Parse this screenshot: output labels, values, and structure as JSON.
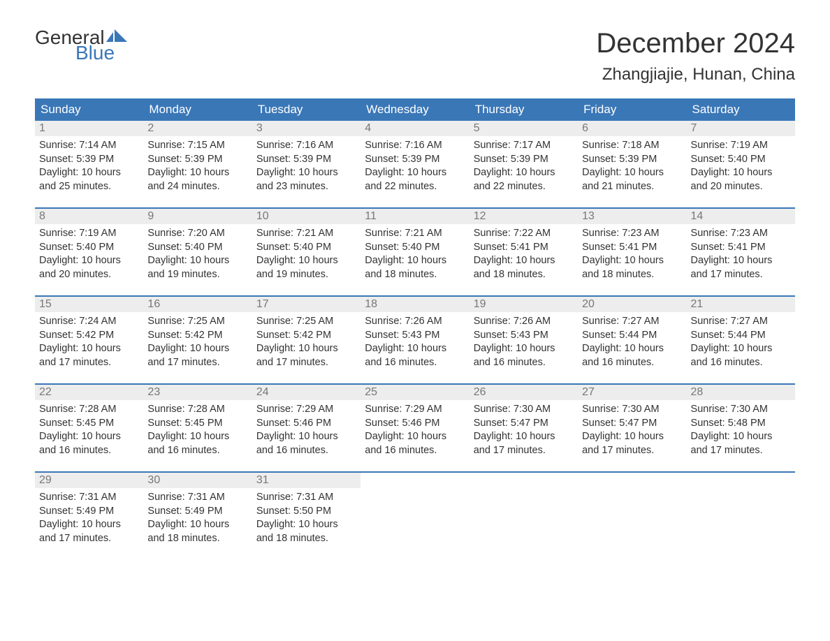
{
  "logo": {
    "word1": "General",
    "word2": "Blue",
    "flag_color": "#3a77b7"
  },
  "title": "December 2024",
  "location": "Zhangjiajie, Hunan, China",
  "colors": {
    "header_bg": "#3a77b7",
    "header_text": "#ffffff",
    "daynum_bg": "#ededed",
    "daynum_text": "#777777",
    "body_text": "#333333",
    "week_divider": "#3a77b7",
    "page_bg": "#ffffff"
  },
  "typography": {
    "title_fontsize": 40,
    "location_fontsize": 24,
    "weekday_fontsize": 17,
    "daynum_fontsize": 16,
    "body_fontsize": 14.5,
    "logo_fontsize": 28
  },
  "weekdays": [
    "Sunday",
    "Monday",
    "Tuesday",
    "Wednesday",
    "Thursday",
    "Friday",
    "Saturday"
  ],
  "labels": {
    "sunrise": "Sunrise:",
    "sunset": "Sunset:",
    "daylight": "Daylight:"
  },
  "days": [
    {
      "n": 1,
      "sunrise": "7:14 AM",
      "sunset": "5:39 PM",
      "daylight": "10 hours and 25 minutes."
    },
    {
      "n": 2,
      "sunrise": "7:15 AM",
      "sunset": "5:39 PM",
      "daylight": "10 hours and 24 minutes."
    },
    {
      "n": 3,
      "sunrise": "7:16 AM",
      "sunset": "5:39 PM",
      "daylight": "10 hours and 23 minutes."
    },
    {
      "n": 4,
      "sunrise": "7:16 AM",
      "sunset": "5:39 PM",
      "daylight": "10 hours and 22 minutes."
    },
    {
      "n": 5,
      "sunrise": "7:17 AM",
      "sunset": "5:39 PM",
      "daylight": "10 hours and 22 minutes."
    },
    {
      "n": 6,
      "sunrise": "7:18 AM",
      "sunset": "5:39 PM",
      "daylight": "10 hours and 21 minutes."
    },
    {
      "n": 7,
      "sunrise": "7:19 AM",
      "sunset": "5:40 PM",
      "daylight": "10 hours and 20 minutes."
    },
    {
      "n": 8,
      "sunrise": "7:19 AM",
      "sunset": "5:40 PM",
      "daylight": "10 hours and 20 minutes."
    },
    {
      "n": 9,
      "sunrise": "7:20 AM",
      "sunset": "5:40 PM",
      "daylight": "10 hours and 19 minutes."
    },
    {
      "n": 10,
      "sunrise": "7:21 AM",
      "sunset": "5:40 PM",
      "daylight": "10 hours and 19 minutes."
    },
    {
      "n": 11,
      "sunrise": "7:21 AM",
      "sunset": "5:40 PM",
      "daylight": "10 hours and 18 minutes."
    },
    {
      "n": 12,
      "sunrise": "7:22 AM",
      "sunset": "5:41 PM",
      "daylight": "10 hours and 18 minutes."
    },
    {
      "n": 13,
      "sunrise": "7:23 AM",
      "sunset": "5:41 PM",
      "daylight": "10 hours and 18 minutes."
    },
    {
      "n": 14,
      "sunrise": "7:23 AM",
      "sunset": "5:41 PM",
      "daylight": "10 hours and 17 minutes."
    },
    {
      "n": 15,
      "sunrise": "7:24 AM",
      "sunset": "5:42 PM",
      "daylight": "10 hours and 17 minutes."
    },
    {
      "n": 16,
      "sunrise": "7:25 AM",
      "sunset": "5:42 PM",
      "daylight": "10 hours and 17 minutes."
    },
    {
      "n": 17,
      "sunrise": "7:25 AM",
      "sunset": "5:42 PM",
      "daylight": "10 hours and 17 minutes."
    },
    {
      "n": 18,
      "sunrise": "7:26 AM",
      "sunset": "5:43 PM",
      "daylight": "10 hours and 16 minutes."
    },
    {
      "n": 19,
      "sunrise": "7:26 AM",
      "sunset": "5:43 PM",
      "daylight": "10 hours and 16 minutes."
    },
    {
      "n": 20,
      "sunrise": "7:27 AM",
      "sunset": "5:44 PM",
      "daylight": "10 hours and 16 minutes."
    },
    {
      "n": 21,
      "sunrise": "7:27 AM",
      "sunset": "5:44 PM",
      "daylight": "10 hours and 16 minutes."
    },
    {
      "n": 22,
      "sunrise": "7:28 AM",
      "sunset": "5:45 PM",
      "daylight": "10 hours and 16 minutes."
    },
    {
      "n": 23,
      "sunrise": "7:28 AM",
      "sunset": "5:45 PM",
      "daylight": "10 hours and 16 minutes."
    },
    {
      "n": 24,
      "sunrise": "7:29 AM",
      "sunset": "5:46 PM",
      "daylight": "10 hours and 16 minutes."
    },
    {
      "n": 25,
      "sunrise": "7:29 AM",
      "sunset": "5:46 PM",
      "daylight": "10 hours and 16 minutes."
    },
    {
      "n": 26,
      "sunrise": "7:30 AM",
      "sunset": "5:47 PM",
      "daylight": "10 hours and 17 minutes."
    },
    {
      "n": 27,
      "sunrise": "7:30 AM",
      "sunset": "5:47 PM",
      "daylight": "10 hours and 17 minutes."
    },
    {
      "n": 28,
      "sunrise": "7:30 AM",
      "sunset": "5:48 PM",
      "daylight": "10 hours and 17 minutes."
    },
    {
      "n": 29,
      "sunrise": "7:31 AM",
      "sunset": "5:49 PM",
      "daylight": "10 hours and 17 minutes."
    },
    {
      "n": 30,
      "sunrise": "7:31 AM",
      "sunset": "5:49 PM",
      "daylight": "10 hours and 18 minutes."
    },
    {
      "n": 31,
      "sunrise": "7:31 AM",
      "sunset": "5:50 PM",
      "daylight": "10 hours and 18 minutes."
    }
  ],
  "layout": {
    "columns": 7,
    "rows": 5,
    "first_day_column": 0,
    "trailing_empty": 4
  }
}
